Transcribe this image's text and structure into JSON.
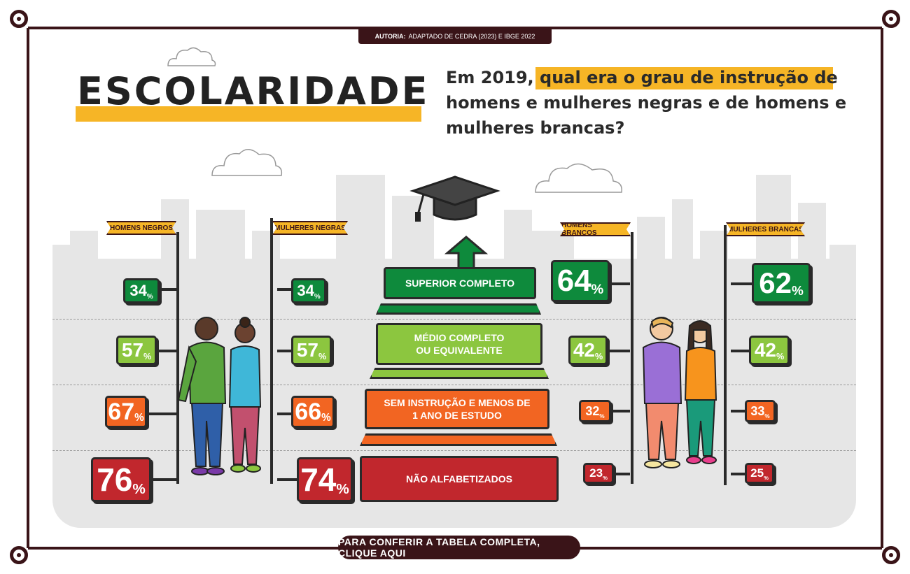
{
  "source": {
    "label": "AUTORIA:",
    "text": "ADAPTADO DE CEDRA (2023) E IBGE 2022"
  },
  "title": "ESCOLARIDADE",
  "question": {
    "prefix": "Em 2019, ",
    "highlight": "qual era o grau de instrução",
    "rest": "de homens e mulheres negras e de homens e mulheres brancas?"
  },
  "groups": [
    "HOMENS NEGROS",
    "MULHERES NEGRAS",
    "HOMENS BRANCOS",
    "MULHERES BRANCAS"
  ],
  "tiers": [
    {
      "line1": "SUPERIOR COMPLETO",
      "line2": "",
      "color": "#0e8a3c",
      "values": [
        "34",
        "34",
        "64",
        "62"
      ]
    },
    {
      "line1": "MÉDIO COMPLETO",
      "line2": "OU EQUIVALENTE",
      "color": "#8cc63f",
      "values": [
        "57",
        "57",
        "42",
        "42"
      ]
    },
    {
      "line1": "SEM INSTRUÇÃO E MENOS DE",
      "line2": "1 ANO DE ESTUDO",
      "color": "#f26522",
      "values": [
        "67",
        "66",
        "32",
        "33"
      ]
    },
    {
      "line1": "NÃO ALFABETIZADOS",
      "line2": "",
      "color": "#c1272d",
      "values": [
        "76",
        "74",
        "23",
        "25"
      ]
    }
  ],
  "percent_symbol": "%",
  "cta": "PARA CONFERIR A TABELA COMPLETA, CLIQUE AQUI",
  "colors": {
    "frame": "#3a1418",
    "accent": "#f6b526",
    "background_city": "#e6e6e6"
  }
}
